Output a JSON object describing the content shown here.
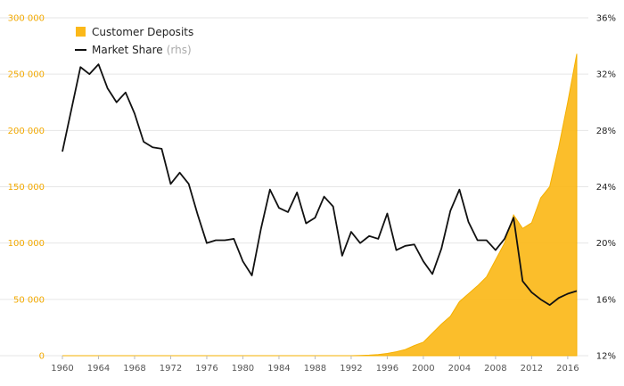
{
  "chart_data": {
    "type": "area",
    "years": [
      1960,
      1961,
      1962,
      1963,
      1964,
      1965,
      1966,
      1967,
      1968,
      1969,
      1970,
      1971,
      1972,
      1973,
      1974,
      1975,
      1976,
      1977,
      1978,
      1979,
      1980,
      1981,
      1982,
      1983,
      1984,
      1985,
      1986,
      1987,
      1988,
      1989,
      1990,
      1991,
      1992,
      1993,
      1994,
      1995,
      1996,
      1997,
      1998,
      1999,
      2000,
      2001,
      2002,
      2003,
      2004,
      2005,
      2006,
      2007,
      2008,
      2009,
      2010,
      2011,
      2012,
      2013,
      2014,
      2015,
      2016,
      2017
    ],
    "x_ticks": [
      "1960",
      "1964",
      "1968",
      "1972",
      "1976",
      "1980",
      "1984",
      "1988",
      "1992",
      "1996",
      "2000",
      "2004",
      "2008",
      "2012",
      "2016"
    ],
    "y_left": {
      "ticks": [
        "0",
        "50 000",
        "100 000",
        "150 000",
        "200 000",
        "250 000",
        "300 000"
      ],
      "range": [
        0,
        300000
      ]
    },
    "y_right": {
      "ticks": [
        "12%",
        "16%",
        "20%",
        "24%",
        "28%",
        "32%",
        "36%"
      ],
      "range": [
        12,
        36
      ]
    },
    "series": [
      {
        "name": "Customer Deposits",
        "kind": "area",
        "axis": "left",
        "color": "#fbb819",
        "values": [
          0,
          0,
          0,
          0,
          0,
          0,
          0,
          0,
          0,
          0,
          0,
          0,
          0,
          0,
          0,
          0,
          0,
          0,
          0,
          0,
          0,
          0,
          0,
          0,
          0,
          0,
          0,
          0,
          0,
          0,
          0,
          0,
          0,
          200,
          500,
          1000,
          2000,
          3500,
          5500,
          9000,
          12000,
          20000,
          28000,
          35000,
          48000,
          55000,
          62000,
          70000,
          85000,
          100000,
          125000,
          113000,
          118000,
          140000,
          150000,
          185000,
          225000,
          268000
        ]
      },
      {
        "name": "Market Share",
        "note": "(rhs)",
        "kind": "line",
        "axis": "right",
        "color": "#111111",
        "values": [
          26.5,
          29.5,
          32.5,
          32.0,
          32.7,
          31.0,
          30.0,
          30.7,
          29.2,
          27.2,
          26.8,
          26.7,
          24.2,
          25.0,
          24.2,
          22.0,
          20.0,
          20.2,
          20.2,
          20.3,
          18.7,
          17.7,
          21.0,
          23.8,
          22.5,
          22.2,
          23.6,
          21.4,
          21.8,
          23.3,
          22.6,
          19.1,
          20.8,
          20.0,
          20.5,
          20.3,
          22.1,
          19.5,
          19.8,
          19.9,
          18.7,
          17.8,
          19.6,
          22.3,
          23.8,
          21.5,
          20.2,
          20.2,
          19.5,
          20.3,
          21.8,
          17.3,
          16.5,
          16.0,
          15.6,
          16.1,
          16.4,
          16.6
        ]
      }
    ],
    "grid": true,
    "legend_position": "top-left"
  }
}
